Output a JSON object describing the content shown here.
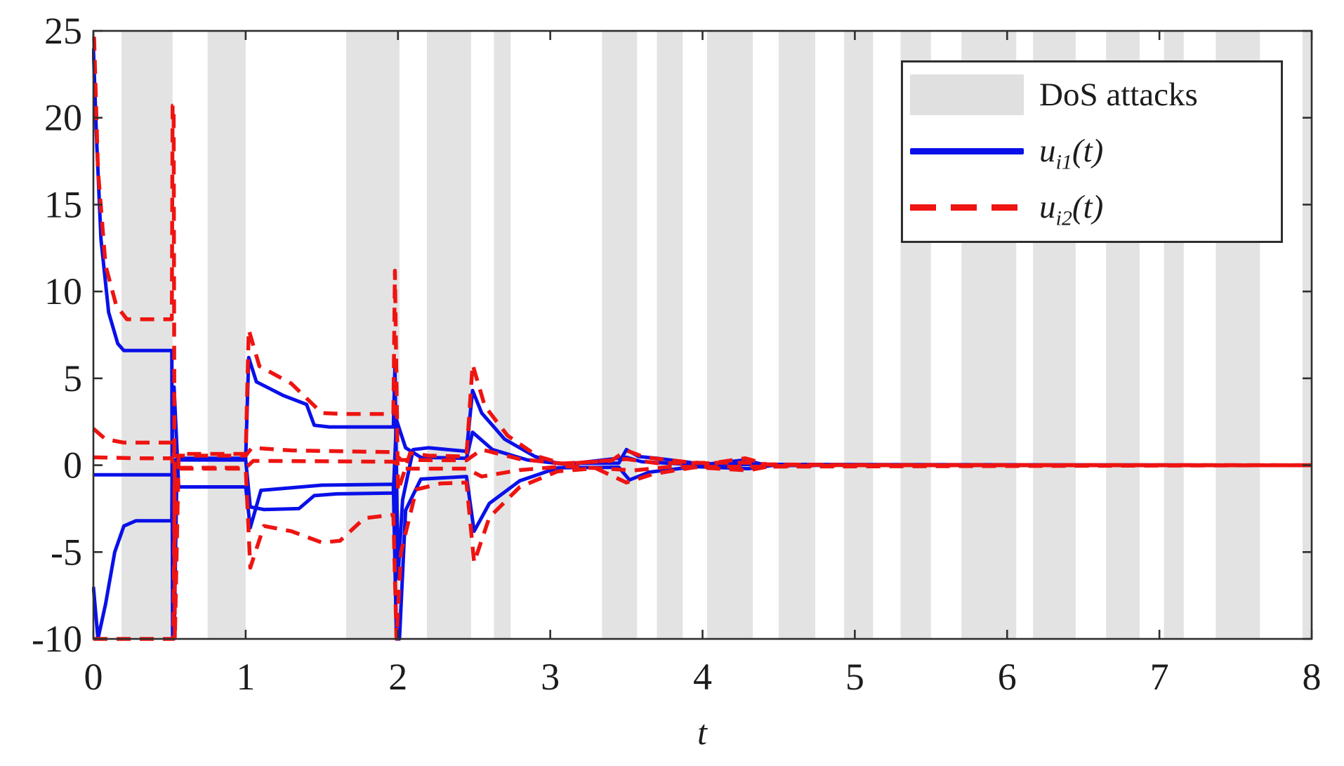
{
  "figure": {
    "background": "#ffffff",
    "axis_color": "#2e2e2e",
    "tick_label_color": "#1c1c1c",
    "band_color": "#e3e3e3",
    "blue": "#0a10e8",
    "red": "#ee1411"
  },
  "legend": {
    "position": "top-right",
    "entries": [
      {
        "label": "DoS attacks",
        "swatch": "gray-box"
      },
      {
        "label": "u_i1(t)",
        "var": "u",
        "sub": "i1",
        "args": "(t)",
        "swatch": "blue-solid-line"
      },
      {
        "label": "u_i2(t)",
        "var": "u",
        "sub": "i2",
        "args": "(t)",
        "swatch": "red-dashed-line"
      }
    ]
  },
  "chart_data": {
    "type": "line",
    "title": "",
    "xlabel": "t",
    "ylabel": "",
    "xlim": [
      0,
      8
    ],
    "ylim": [
      -10,
      25
    ],
    "x_ticks": [
      "0",
      "1",
      "2",
      "3",
      "4",
      "5",
      "6",
      "7",
      "8"
    ],
    "y_ticks": [
      "25",
      "20",
      "15",
      "10",
      "5",
      "0",
      "-5",
      "-10"
    ],
    "grid": false,
    "legend_position": "top-right",
    "dos_attack_intervals": [
      [
        0.185,
        0.52
      ],
      [
        0.75,
        1.0
      ],
      [
        1.66,
        2.01
      ],
      [
        2.19,
        2.48
      ],
      [
        2.63,
        2.74
      ],
      [
        3.34,
        3.57
      ],
      [
        3.7,
        3.87
      ],
      [
        4.03,
        4.33
      ],
      [
        4.5,
        4.74
      ],
      [
        4.93,
        5.12
      ],
      [
        5.3,
        5.5
      ],
      [
        5.7,
        6.06
      ],
      [
        6.17,
        6.45
      ],
      [
        6.65,
        6.87
      ],
      [
        7.03,
        7.16
      ],
      [
        7.37,
        7.66
      ],
      [
        7.94,
        8.0
      ]
    ],
    "series": [
      {
        "name": "u_i1(t)",
        "color": "#0a10e8",
        "style": "solid",
        "lines": [
          [
            [
              0,
              24
            ],
            [
              0.02,
              19
            ],
            [
              0.05,
              13
            ],
            [
              0.1,
              8.8
            ],
            [
              0.16,
              7.0
            ],
            [
              0.2,
              6.6
            ],
            [
              0.515,
              6.6
            ],
            [
              0.52,
              -10
            ],
            [
              0.53,
              -10
            ],
            [
              0.55,
              0.4
            ],
            [
              1.0,
              0.4
            ],
            [
              1.02,
              6.2
            ],
            [
              1.07,
              4.8
            ],
            [
              1.25,
              4.0
            ],
            [
              1.4,
              3.5
            ],
            [
              1.45,
              2.3
            ],
            [
              1.55,
              2.2
            ],
            [
              1.97,
              2.2
            ],
            [
              1.98,
              5.6
            ],
            [
              2.0,
              -6.5
            ],
            [
              2.03,
              -2.0
            ],
            [
              2.1,
              0.9
            ],
            [
              2.2,
              1.0
            ],
            [
              2.45,
              0.8
            ],
            [
              2.49,
              4.3
            ],
            [
              2.55,
              3.0
            ],
            [
              2.7,
              1.5
            ],
            [
              2.9,
              0.5
            ],
            [
              3.05,
              0.1
            ],
            [
              3.45,
              0.12
            ],
            [
              3.5,
              0.9
            ],
            [
              3.58,
              0.5
            ],
            [
              3.7,
              0.4
            ],
            [
              3.95,
              0.12
            ],
            [
              4.05,
              0.08
            ],
            [
              4.28,
              0.3
            ],
            [
              4.4,
              0.03
            ],
            [
              5,
              0
            ],
            [
              8,
              0
            ]
          ],
          [
            [
              0,
              -7
            ],
            [
              0.03,
              -10
            ],
            [
              0.08,
              -8
            ],
            [
              0.14,
              -5
            ],
            [
              0.2,
              -3.5
            ],
            [
              0.28,
              -3.2
            ],
            [
              0.515,
              -3.2
            ],
            [
              0.52,
              4.5
            ],
            [
              0.53,
              4.5
            ],
            [
              0.56,
              -1.25
            ],
            [
              1.0,
              -1.25
            ],
            [
              1.03,
              -3.6
            ],
            [
              1.1,
              -1.45
            ],
            [
              1.5,
              -1.15
            ],
            [
              1.97,
              -1.1
            ],
            [
              1.99,
              -10
            ],
            [
              2.01,
              -10
            ],
            [
              2.05,
              -2.6
            ],
            [
              2.15,
              -0.8
            ],
            [
              2.45,
              -0.65
            ],
            [
              2.5,
              -3.8
            ],
            [
              2.6,
              -2.2
            ],
            [
              2.8,
              -0.9
            ],
            [
              3.05,
              -0.15
            ],
            [
              3.45,
              -0.12
            ],
            [
              3.52,
              -0.85
            ],
            [
              3.65,
              -0.4
            ],
            [
              3.95,
              -0.08
            ],
            [
              4.3,
              -0.2
            ],
            [
              4.45,
              -0.02
            ],
            [
              5,
              0
            ],
            [
              8,
              0
            ]
          ],
          [
            [
              0,
              -0.55
            ],
            [
              0.515,
              -0.55
            ],
            [
              0.53,
              0.3
            ],
            [
              1.0,
              0.3
            ],
            [
              1.03,
              -2.4
            ],
            [
              1.12,
              -2.55
            ],
            [
              1.35,
              -2.5
            ],
            [
              1.45,
              -1.75
            ],
            [
              1.6,
              -1.65
            ],
            [
              1.97,
              -1.6
            ],
            [
              1.99,
              2.6
            ],
            [
              2.05,
              1.0
            ],
            [
              2.15,
              0.45
            ],
            [
              2.45,
              0.4
            ],
            [
              2.49,
              1.9
            ],
            [
              2.62,
              0.9
            ],
            [
              2.85,
              0.3
            ],
            [
              3.1,
              0.05
            ],
            [
              3.5,
              0.45
            ],
            [
              3.6,
              0.2
            ],
            [
              3.9,
              0.05
            ],
            [
              8,
              0
            ]
          ]
        ]
      },
      {
        "name": "u_i2(t)",
        "color": "#ee1411",
        "style": "dashed",
        "lines": [
          [
            [
              0,
              26
            ],
            [
              0.03,
              17
            ],
            [
              0.08,
              11.5
            ],
            [
              0.15,
              9.2
            ],
            [
              0.22,
              8.4
            ],
            [
              0.515,
              8.4
            ],
            [
              0.52,
              20.7
            ],
            [
              0.527,
              20.7
            ],
            [
              0.535,
              -10
            ],
            [
              0.56,
              0.65
            ],
            [
              1.0,
              0.65
            ],
            [
              1.02,
              7.8
            ],
            [
              1.09,
              5.7
            ],
            [
              1.3,
              4.7
            ],
            [
              1.5,
              3.0
            ],
            [
              1.65,
              2.95
            ],
            [
              1.97,
              2.95
            ],
            [
              1.98,
              11.2
            ],
            [
              2.0,
              -1.5
            ],
            [
              2.08,
              0.7
            ],
            [
              2.2,
              0.55
            ],
            [
              2.45,
              0.5
            ],
            [
              2.49,
              5.8
            ],
            [
              2.57,
              3.4
            ],
            [
              2.72,
              1.7
            ],
            [
              2.92,
              0.5
            ],
            [
              3.08,
              0.1
            ],
            [
              3.4,
              0.25
            ],
            [
              3.5,
              0.85
            ],
            [
              3.62,
              0.45
            ],
            [
              3.9,
              0.18
            ],
            [
              4.05,
              0.1
            ],
            [
              4.28,
              0.4
            ],
            [
              4.42,
              0.05
            ],
            [
              5,
              0
            ],
            [
              8,
              0
            ]
          ],
          [
            [
              0,
              2.1
            ],
            [
              0.08,
              1.5
            ],
            [
              0.2,
              1.3
            ],
            [
              0.515,
              1.3
            ],
            [
              0.53,
              0.55
            ],
            [
              1.0,
              0.55
            ],
            [
              1.04,
              1.0
            ],
            [
              1.3,
              0.85
            ],
            [
              1.97,
              0.75
            ],
            [
              2.02,
              0.3
            ],
            [
              2.45,
              0.28
            ],
            [
              2.55,
              0.9
            ],
            [
              2.8,
              0.35
            ],
            [
              3.1,
              0.08
            ],
            [
              3.5,
              0.35
            ],
            [
              3.7,
              0.12
            ],
            [
              4.3,
              0.15
            ],
            [
              4.45,
              0.02
            ],
            [
              8,
              0
            ]
          ],
          [
            [
              0,
              0.45
            ],
            [
              0.3,
              0.4
            ],
            [
              0.515,
              0.4
            ],
            [
              0.53,
              -0.15
            ],
            [
              1.0,
              -0.15
            ],
            [
              1.05,
              0.25
            ],
            [
              1.97,
              0.2
            ],
            [
              2.05,
              -0.2
            ],
            [
              2.45,
              -0.2
            ],
            [
              2.55,
              -0.65
            ],
            [
              2.8,
              -0.28
            ],
            [
              3.1,
              -0.06
            ],
            [
              3.55,
              -0.3
            ],
            [
              3.78,
              -0.1
            ],
            [
              8,
              0
            ]
          ],
          [
            [
              0,
              -10
            ],
            [
              0.515,
              -10
            ],
            [
              0.525,
              -10
            ],
            [
              0.535,
              -0.2
            ],
            [
              1.0,
              -0.2
            ],
            [
              1.03,
              -5.9
            ],
            [
              1.12,
              -3.5
            ],
            [
              1.3,
              -3.8
            ],
            [
              1.5,
              -4.45
            ],
            [
              1.62,
              -4.35
            ],
            [
              1.78,
              -3.05
            ],
            [
              1.97,
              -2.85
            ],
            [
              1.99,
              -10
            ],
            [
              2.02,
              -5
            ],
            [
              2.12,
              -1.4
            ],
            [
              2.28,
              -1.05
            ],
            [
              2.45,
              -1.0
            ],
            [
              2.5,
              -5.6
            ],
            [
              2.6,
              -3.0
            ],
            [
              2.8,
              -1.25
            ],
            [
              3.05,
              -0.35
            ],
            [
              3.3,
              -0.18
            ],
            [
              3.5,
              -1.0
            ],
            [
              3.68,
              -0.5
            ],
            [
              3.95,
              -0.12
            ],
            [
              4.3,
              -0.3
            ],
            [
              4.45,
              -0.05
            ],
            [
              5,
              0
            ],
            [
              8,
              0
            ]
          ]
        ]
      }
    ]
  }
}
